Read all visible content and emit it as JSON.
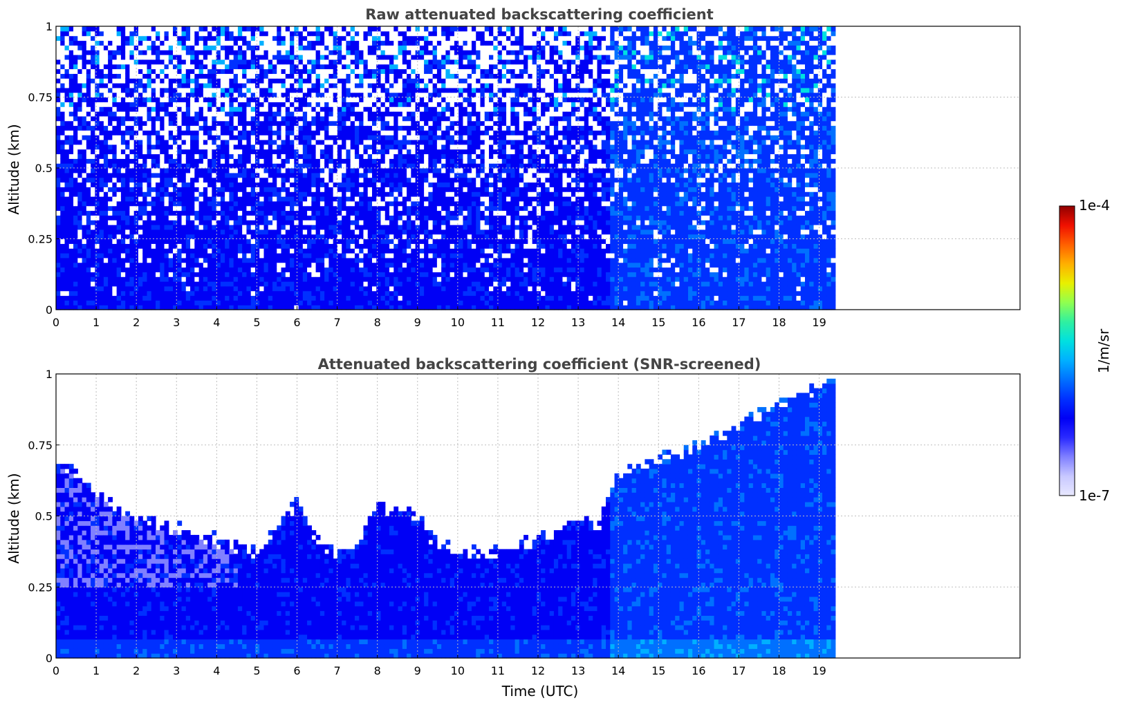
{
  "colors": {
    "colormap": [
      "#e8e8ff",
      "#c8c8ff",
      "#8080ff",
      "#2a2aff",
      "#0000f5",
      "#0030ff",
      "#0070ff",
      "#00b0ff",
      "#00e0e0",
      "#30f0a0",
      "#90ff50",
      "#e8f000",
      "#ffb000",
      "#ff6000",
      "#f01000",
      "#900000"
    ],
    "white": "#ffffff"
  },
  "colorbar": {
    "label": "1/m/sr",
    "min_label": "1e-7",
    "max_label": "1e-4",
    "scale": "log",
    "range": [
      1e-07,
      0.0001
    ]
  },
  "chart_data": [
    {
      "type": "heatmap",
      "title": "Raw attenuated backscattering coefficient",
      "xlabel": "",
      "ylabel": "Altitude (km)",
      "xlim": [
        0,
        24
      ],
      "ylim": [
        0,
        1
      ],
      "x_ticks": [
        0,
        1,
        2,
        3,
        4,
        5,
        6,
        7,
        8,
        9,
        10,
        11,
        12,
        13,
        14,
        15,
        16,
        17,
        18,
        19
      ],
      "y_ticks": [
        0,
        0.25,
        0.5,
        0.75,
        1
      ],
      "y_tick_labels": [
        "0",
        "0.25",
        "0.5",
        "0.75",
        "1"
      ],
      "grid": true,
      "data_end_hour": 19.4,
      "screened": false,
      "profile": {
        "hours": [
          0,
          2,
          4,
          6,
          7.5,
          10,
          12,
          13,
          14,
          15,
          17,
          19.4
        ],
        "top_km": [
          1,
          1,
          1,
          1,
          1,
          1,
          1,
          1,
          1,
          1,
          1,
          1
        ]
      }
    },
    {
      "type": "heatmap",
      "title": "Attenuated backscattering coefficient (SNR-screened)",
      "xlabel": "Time (UTC)",
      "ylabel": "Altitude (km)",
      "xlim": [
        0,
        24
      ],
      "ylim": [
        0,
        1
      ],
      "x_ticks": [
        0,
        1,
        2,
        3,
        4,
        5,
        6,
        7,
        8,
        9,
        10,
        11,
        12,
        13,
        14,
        15,
        16,
        17,
        18,
        19
      ],
      "y_ticks": [
        0,
        0.25,
        0.5,
        0.75,
        1
      ],
      "y_tick_labels": [
        "0",
        "0.25",
        "0.5",
        "0.75",
        "1"
      ],
      "grid": true,
      "data_end_hour": 19.4,
      "screened": true,
      "profile": {
        "hours": [
          0,
          0.5,
          1,
          1.5,
          2,
          3,
          4,
          5,
          5.5,
          6,
          6.5,
          7,
          7.5,
          8,
          8.5,
          9,
          9.5,
          10,
          11,
          12,
          12.5,
          13,
          13.5,
          14,
          15,
          16,
          17,
          18,
          19,
          19.4
        ],
        "top_km": [
          0.7,
          0.66,
          0.58,
          0.53,
          0.5,
          0.46,
          0.42,
          0.37,
          0.45,
          0.55,
          0.42,
          0.35,
          0.4,
          0.54,
          0.52,
          0.5,
          0.4,
          0.37,
          0.38,
          0.42,
          0.45,
          0.5,
          0.47,
          0.65,
          0.7,
          0.74,
          0.82,
          0.9,
          0.95,
          0.98
        ]
      }
    }
  ]
}
